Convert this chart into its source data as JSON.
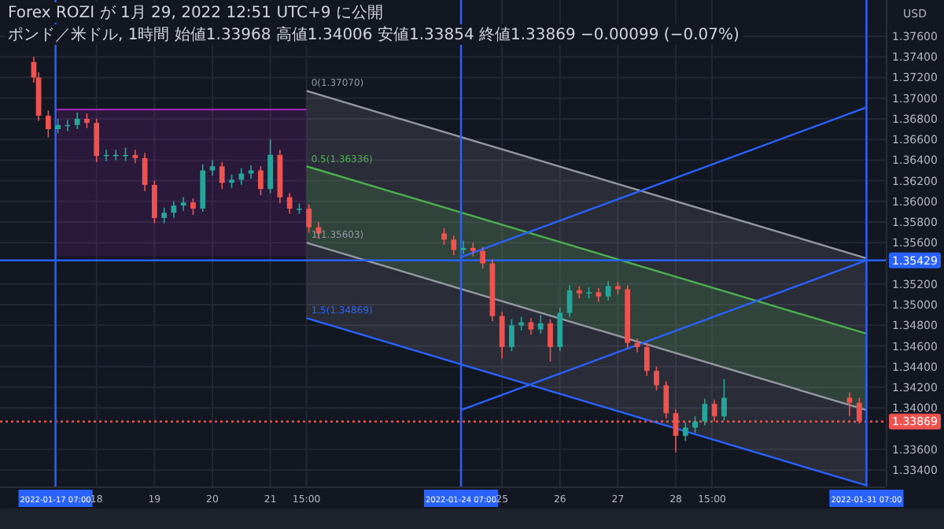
{
  "chart_data": {
    "type": "candlestick",
    "title": "Forex ROZI が 1月 29, 2022 12:51 UTC+9 に公開",
    "subtitle": "ポンド／米ドル, 1時間 始値1.33968 高値1.34006 安値1.33854 終値1.33869 −0.00099 (−0.07%)",
    "ylabel": "USD",
    "x": [
      "2022-01-16T22:00",
      "2022-01-17T00:00",
      "2022-01-17T04:00",
      "2022-01-17T08:00",
      "2022-01-17T12:00",
      "2022-01-17T16:00",
      "2022-01-17T20:00",
      "2022-01-18T00:00",
      "2022-01-18T04:00",
      "2022-01-18T08:00",
      "2022-01-18T12:00",
      "2022-01-18T16:00",
      "2022-01-18T20:00",
      "2022-01-19T00:00",
      "2022-01-19T04:00",
      "2022-01-19T08:00",
      "2022-01-19T12:00",
      "2022-01-19T16:00",
      "2022-01-19T20:00",
      "2022-01-20T00:00",
      "2022-01-20T04:00",
      "2022-01-20T08:00",
      "2022-01-20T12:00",
      "2022-01-20T16:00",
      "2022-01-20T20:00",
      "2022-01-21T00:00",
      "2022-01-21T04:00",
      "2022-01-21T08:00",
      "2022-01-21T12:00",
      "2022-01-21T16:00",
      "2022-01-21T20:00",
      "2022-01-24T00:00",
      "2022-01-24T04:00",
      "2022-01-24T08:00",
      "2022-01-24T12:00",
      "2022-01-24T16:00",
      "2022-01-24T20:00",
      "2022-01-25T00:00",
      "2022-01-25T04:00",
      "2022-01-25T08:00",
      "2022-01-25T12:00",
      "2022-01-25T16:00",
      "2022-01-25T20:00",
      "2022-01-26T00:00",
      "2022-01-26T04:00",
      "2022-01-26T08:00",
      "2022-01-26T12:00",
      "2022-01-26T16:00",
      "2022-01-26T20:00",
      "2022-01-27T00:00",
      "2022-01-27T04:00",
      "2022-01-27T08:00",
      "2022-01-27T12:00",
      "2022-01-27T16:00",
      "2022-01-27T20:00",
      "2022-01-28T00:00",
      "2022-01-28T04:00",
      "2022-01-28T08:00",
      "2022-01-28T12:00",
      "2022-01-28T16:00",
      "2022-01-28T20:00",
      "2022-01-31T00:00",
      "2022-01-31T04:00"
    ],
    "ohlc": [
      [
        1.3735,
        1.374,
        1.3715,
        1.372
      ],
      [
        1.372,
        1.3725,
        1.3678,
        1.3683
      ],
      [
        1.3683,
        1.3688,
        1.3662,
        1.367
      ],
      [
        1.367,
        1.368,
        1.3666,
        1.3674
      ],
      [
        1.3674,
        1.3679,
        1.3668,
        1.3674
      ],
      [
        1.3674,
        1.3686,
        1.367,
        1.368
      ],
      [
        1.368,
        1.3685,
        1.3671,
        1.3676
      ],
      [
        1.3676,
        1.368,
        1.3638,
        1.3644
      ],
      [
        1.3644,
        1.365,
        1.3639,
        1.3645
      ],
      [
        1.3645,
        1.365,
        1.364,
        1.3645
      ],
      [
        1.3645,
        1.3652,
        1.3639,
        1.3645
      ],
      [
        1.3645,
        1.365,
        1.3637,
        1.3642
      ],
      [
        1.3642,
        1.3647,
        1.361,
        1.3616
      ],
      [
        1.3616,
        1.362,
        1.3579,
        1.3584
      ],
      [
        1.3584,
        1.3594,
        1.3579,
        1.3589
      ],
      [
        1.3589,
        1.36,
        1.3584,
        1.3596
      ],
      [
        1.3596,
        1.3604,
        1.3591,
        1.3599
      ],
      [
        1.3599,
        1.3603,
        1.3587,
        1.3593
      ],
      [
        1.3593,
        1.3636,
        1.359,
        1.363
      ],
      [
        1.363,
        1.364,
        1.3625,
        1.3634
      ],
      [
        1.3634,
        1.3638,
        1.3612,
        1.3618
      ],
      [
        1.3618,
        1.3626,
        1.3613,
        1.3621
      ],
      [
        1.3621,
        1.3632,
        1.3616,
        1.3627
      ],
      [
        1.3627,
        1.3635,
        1.3622,
        1.363
      ],
      [
        1.363,
        1.3634,
        1.3606,
        1.3612
      ],
      [
        1.3612,
        1.366,
        1.3608,
        1.3645
      ],
      [
        1.3645,
        1.365,
        1.3598,
        1.3604
      ],
      [
        1.3604,
        1.3608,
        1.3588,
        1.3593
      ],
      [
        1.3593,
        1.3598,
        1.3588,
        1.3593
      ],
      [
        1.3593,
        1.3597,
        1.357,
        1.3575
      ],
      [
        1.3575,
        1.358,
        1.3564,
        1.3569
      ],
      [
        1.3569,
        1.3574,
        1.3558,
        1.3563
      ],
      [
        1.3563,
        1.3567,
        1.3548,
        1.3553
      ],
      [
        1.3553,
        1.3562,
        1.3549,
        1.3555
      ],
      [
        1.3555,
        1.356,
        1.3547,
        1.3552
      ],
      [
        1.3552,
        1.3556,
        1.3535,
        1.354
      ],
      [
        1.354,
        1.3544,
        1.3484,
        1.3489
      ],
      [
        1.3489,
        1.3493,
        1.3448,
        1.3459
      ],
      [
        1.3459,
        1.3486,
        1.3455,
        1.348
      ],
      [
        1.348,
        1.3488,
        1.3475,
        1.3483
      ],
      [
        1.3483,
        1.3487,
        1.3471,
        1.3476
      ],
      [
        1.3476,
        1.349,
        1.3472,
        1.3482
      ],
      [
        1.3482,
        1.3486,
        1.3445,
        1.3459
      ],
      [
        1.3459,
        1.3497,
        1.3455,
        1.3492
      ],
      [
        1.3492,
        1.3519,
        1.3488,
        1.3514
      ],
      [
        1.3514,
        1.3518,
        1.3506,
        1.3511
      ],
      [
        1.3511,
        1.3517,
        1.3506,
        1.3512
      ],
      [
        1.3512,
        1.3516,
        1.3503,
        1.3508
      ],
      [
        1.3508,
        1.3523,
        1.3504,
        1.3518
      ],
      [
        1.3518,
        1.3522,
        1.351,
        1.3515
      ],
      [
        1.3515,
        1.3519,
        1.3458,
        1.3463
      ],
      [
        1.3463,
        1.3467,
        1.3454,
        1.3459
      ],
      [
        1.3459,
        1.3463,
        1.3431,
        1.3436
      ],
      [
        1.3436,
        1.344,
        1.3417,
        1.3422
      ],
      [
        1.3422,
        1.3426,
        1.339,
        1.3395
      ],
      [
        1.3395,
        1.3399,
        1.3357,
        1.3373
      ],
      [
        1.3373,
        1.3386,
        1.3368,
        1.3381
      ],
      [
        1.3381,
        1.3392,
        1.3376,
        1.3387
      ],
      [
        1.3387,
        1.3409,
        1.3383,
        1.3404
      ],
      [
        1.3404,
        1.3408,
        1.3387,
        1.3392
      ],
      [
        1.3392,
        1.3428,
        1.3388,
        1.341
      ],
      [
        1.341,
        1.3415,
        1.3392,
        1.3405
      ],
      [
        1.3405,
        1.341,
        1.3385,
        1.3387
      ]
    ],
    "colors": [
      "#ef5350",
      "#ef5350",
      "#ef5350",
      "#26a69a",
      "#26a69a",
      "#26a69a",
      "#ef5350",
      "#ef5350",
      "#26a69a",
      "#26a69a",
      "#26a69a",
      "#ef5350",
      "#ef5350",
      "#ef5350",
      "#26a69a",
      "#26a69a",
      "#26a69a",
      "#ef5350",
      "#26a69a",
      "#26a69a",
      "#ef5350",
      "#26a69a",
      "#26a69a",
      "#26a69a",
      "#ef5350",
      "#26a69a",
      "#ef5350",
      "#ef5350",
      "#26a69a",
      "#ef5350",
      "#ef5350",
      "#ef5350",
      "#ef5350",
      "#26a69a",
      "#ef5350",
      "#ef5350",
      "#ef5350",
      "#ef5350",
      "#26a69a",
      "#26a69a",
      "#ef5350",
      "#26a69a",
      "#ef5350",
      "#26a69a",
      "#26a69a",
      "#ef5350",
      "#26a69a",
      "#ef5350",
      "#26a69a",
      "#ef5350",
      "#ef5350",
      "#ef5350",
      "#ef5350",
      "#ef5350",
      "#ef5350",
      "#ef5350",
      "#26a69a",
      "#26a69a",
      "#26a69a",
      "#ef5350",
      "#26a69a",
      "#ef5350",
      "#ef5350"
    ],
    "series": [
      {
        "type": "line",
        "x": [
          "2022-01-17T07:00",
          "2022-01-21T15:00"
        ],
        "values": [
          1.3689,
          1.3689
        ],
        "lower": [
          1.3547,
          1.3547
        ],
        "upper": [
          1.3689,
          1.3689
        ],
        "color": "#9c27b0"
      },
      {
        "type": "line",
        "x": [
          "2022-01-21T15:00",
          "2022-01-31T07:00"
        ],
        "values": [
          1.3707,
          1.3545
        ],
        "lower": [
          1.3487,
          1.3325
        ],
        "upper": [
          1.3707,
          1.3545
        ],
        "color": "#9598a1"
      },
      {
        "type": "line",
        "x": [
          "2022-01-21T15:00",
          "2022-01-31T07:00"
        ],
        "values": [
          1.3634,
          1.3472
        ],
        "lower": [
          1.356,
          1.3398
        ],
        "upper": [
          1.3634,
          1.3472
        ],
        "color": "#4caf50"
      },
      {
        "type": "line",
        "x": [
          "2022-01-21T15:00",
          "2022-01-31T07:00"
        ],
        "values": [
          1.356,
          1.3398
        ],
        "color": "#9598a1"
      },
      {
        "type": "line",
        "x": [
          "2022-01-21T15:00",
          "2022-01-31T07:00"
        ],
        "values": [
          1.3487,
          1.3325
        ],
        "color": "#2962ff"
      },
      {
        "type": "line",
        "x": [
          "2022-01-24T07:00",
          "2022-01-31T07:00"
        ],
        "values": [
          1.3398,
          1.3543
        ],
        "color": "#2962ff"
      },
      {
        "type": "line",
        "x": [
          "2022-01-24T07:00",
          "2022-01-31T07:00"
        ],
        "values": [
          1.3546,
          1.3691
        ],
        "color": "#2962ff"
      }
    ],
    "annotations": [
      {
        "text": "0(1.37070)",
        "x": "2022-01-21T15:00",
        "y": 1.3707
      },
      {
        "text": "0.5(1.36336)",
        "x": "2022-01-21T15:00",
        "y": 1.36336
      },
      {
        "text": "1(1.35603)",
        "x": "2022-01-21T15:00",
        "y": 1.35603
      },
      {
        "text": "1.5(1.34869)",
        "x": "2022-01-21T15:00",
        "y": 1.34869
      }
    ],
    "ref_lines": [
      {
        "axis": "y",
        "value": 1.35429,
        "label": "1.35429",
        "color": "#2962ff"
      },
      {
        "axis": "y",
        "value": 1.33869,
        "label": "1.33869",
        "color": "#ef5350",
        "line_style": "dotted"
      },
      {
        "axis": "x",
        "value": "2022-01-17T07:00",
        "color": "#2962ff"
      },
      {
        "axis": "x",
        "value": "2022-01-24T07:00",
        "color": "#2962ff"
      },
      {
        "axis": "x",
        "value": "2022-01-31T07:00",
        "color": "#2962ff"
      }
    ],
    "xlim": [
      "2022-01-16T08:00",
      "2022-01-31T15:00"
    ],
    "xticks": [
      {
        "value": "2022-01-17T07:00",
        "label": "2022-01-17 07:00"
      },
      {
        "value": "2022-01-18",
        "label": "18"
      },
      {
        "value": "2022-01-19",
        "label": "19"
      },
      {
        "value": "2022-01-20",
        "label": "20"
      },
      {
        "value": "2022-01-21",
        "label": "21"
      },
      {
        "value": "2022-01-21T15:00",
        "label": "15:00"
      },
      {
        "value": "2022-01-24T07:00",
        "label": "2022-01-24 07:00"
      },
      {
        "value": "2022-01-25",
        "label": "25"
      },
      {
        "value": "2022-01-26",
        "label": "26"
      },
      {
        "value": "2022-01-27",
        "label": "27"
      },
      {
        "value": "2022-01-28",
        "label": "28"
      },
      {
        "value": "2022-01-28T15:00",
        "label": "15:00"
      },
      {
        "value": "2022-01-31T07:00",
        "label": "2022-01-31 07:00"
      }
    ],
    "ylim": [
      1.3324,
      1.3795
    ],
    "yticks": [
      {
        "value": 1.334,
        "label": "1.33400"
      },
      {
        "value": 1.336,
        "label": "1.33600"
      },
      {
        "value": 1.338,
        "label": null
      },
      {
        "value": 1.34,
        "label": "1.34000"
      },
      {
        "value": 1.342,
        "label": "1.34200"
      },
      {
        "value": 1.344,
        "label": "1.34400"
      },
      {
        "value": 1.346,
        "label": "1.34600"
      },
      {
        "value": 1.348,
        "label": "1.34800"
      },
      {
        "value": 1.35,
        "label": "1.35000"
      },
      {
        "value": 1.352,
        "label": "1.35200"
      },
      {
        "value": 1.354,
        "label": null
      },
      {
        "value": 1.356,
        "label": "1.35600"
      },
      {
        "value": 1.358,
        "label": "1.35800"
      },
      {
        "value": 1.36,
        "label": "1.36000"
      },
      {
        "value": 1.362,
        "label": "1.36200"
      },
      {
        "value": 1.364,
        "label": "1.36400"
      },
      {
        "value": 1.366,
        "label": "1.36600"
      },
      {
        "value": 1.368,
        "label": "1.36800"
      },
      {
        "value": 1.37,
        "label": "1.37000"
      },
      {
        "value": 1.372,
        "label": "1.37200"
      },
      {
        "value": 1.374,
        "label": "1.37400"
      },
      {
        "value": 1.376,
        "label": "1.37600"
      }
    ],
    "grid": true
  }
}
